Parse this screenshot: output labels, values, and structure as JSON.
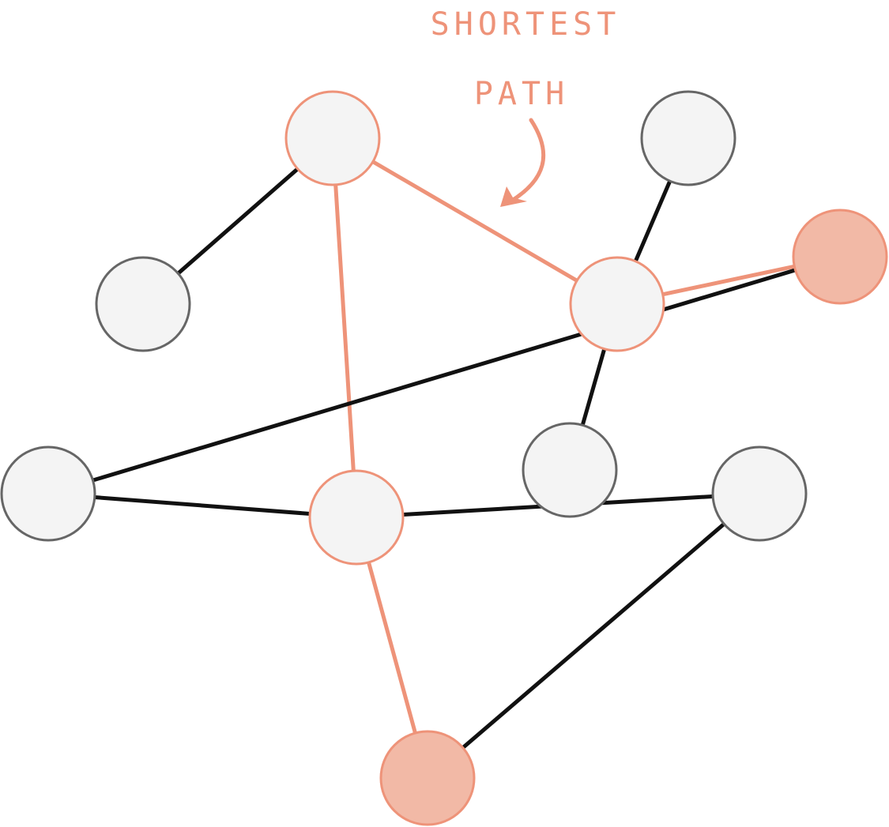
{
  "annotation": {
    "lines": [
      "SHORTEST",
      "PATH"
    ],
    "color": "#ee9379"
  },
  "colors": {
    "edge_normal": "#111111",
    "edge_path": "#ee9379",
    "node_fill": "#f4f4f4",
    "node_stroke": "#666666",
    "node_path_stroke": "#ee9379",
    "endpoint_fill": "#f2b9a6"
  },
  "graph": {
    "nodes": [
      {
        "id": "n1",
        "role": "path"
      },
      {
        "id": "n2",
        "role": "normal"
      },
      {
        "id": "n3",
        "role": "path"
      },
      {
        "id": "n4",
        "role": "normal"
      },
      {
        "id": "n5",
        "role": "endpoint"
      },
      {
        "id": "n6",
        "role": "normal"
      },
      {
        "id": "n7",
        "role": "path"
      },
      {
        "id": "n8",
        "role": "normal"
      },
      {
        "id": "n9",
        "role": "normal"
      },
      {
        "id": "n10",
        "role": "endpoint"
      }
    ],
    "edges": [
      {
        "from": "n1",
        "to": "n2",
        "on_path": false
      },
      {
        "from": "n1",
        "to": "n3",
        "on_path": true
      },
      {
        "from": "n1",
        "to": "n7",
        "on_path": true
      },
      {
        "from": "n3",
        "to": "n4",
        "on_path": false
      },
      {
        "from": "n3",
        "to": "n5",
        "on_path": true
      },
      {
        "from": "n6",
        "to": "n3",
        "on_path": false
      },
      {
        "from": "n7",
        "to": "n8",
        "on_path": false
      },
      {
        "from": "n7",
        "to": "n9",
        "on_path": false
      },
      {
        "from": "n7",
        "to": "n10",
        "on_path": true
      },
      {
        "from": "n4",
        "to": "n10",
        "on_path": false
      },
      {
        "from": "n6",
        "to": "n5",
        "on_path": false
      }
    ]
  }
}
